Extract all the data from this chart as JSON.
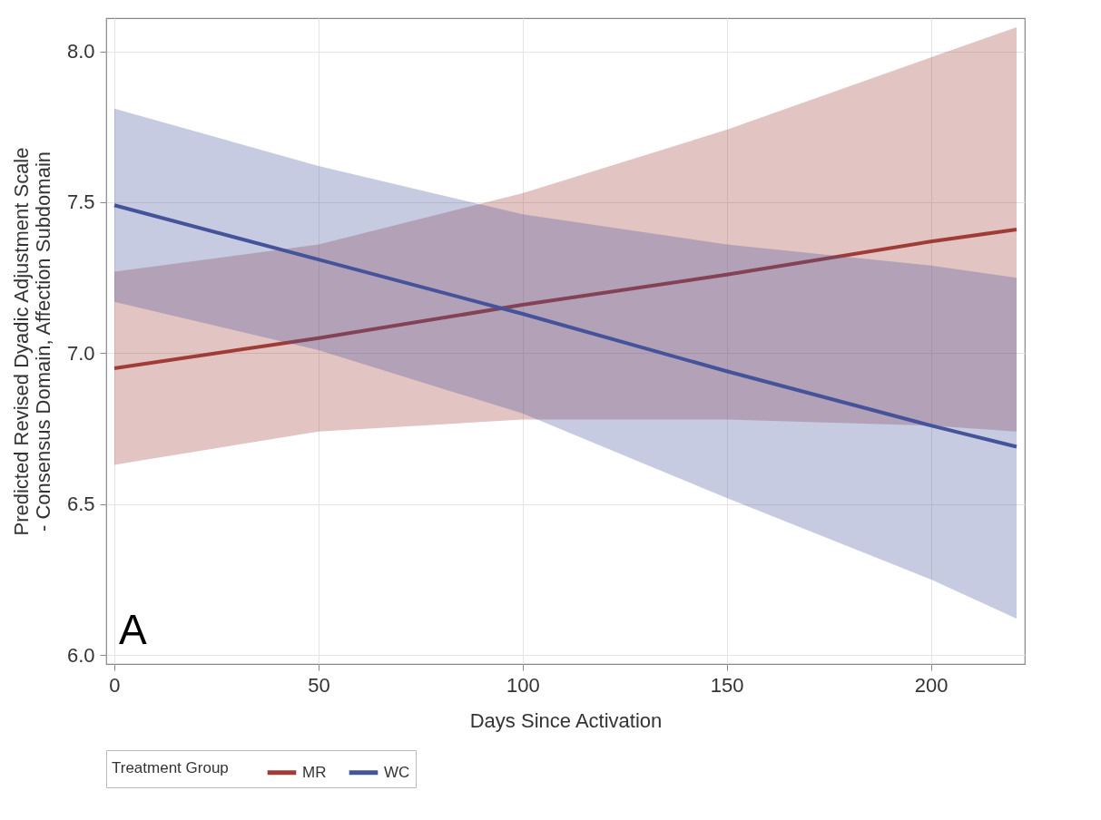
{
  "chart_data": {
    "type": "line",
    "xlabel": "Days Since Activation",
    "ylabel": "Predicted Revised Dyadic Adjustment Scale - Consensus Domain, Affection Subdomain",
    "legend_title": "Treatment Group",
    "legend": "bottom",
    "grid": true,
    "line_style": "solid",
    "marker": "none",
    "xlim": [
      -2,
      223
    ],
    "xticks": [
      0,
      50,
      100,
      150,
      200
    ],
    "ylim": [
      5.97,
      8.11
    ],
    "yticks": [
      {
        "value": 6,
        "label": "6.0"
      },
      6.5,
      {
        "value": 7,
        "label": "7.0"
      },
      7.5,
      {
        "value": 8,
        "label": "8.0"
      }
    ],
    "annotations": [
      "A"
    ],
    "series": [
      {
        "name": "MR",
        "color": "#a03c38",
        "x": [
          0,
          50,
          100,
          150,
          200,
          221
        ],
        "values": [
          6.95,
          7.05,
          7.16,
          7.26,
          7.37,
          7.41
        ],
        "lower": [
          6.63,
          6.74,
          6.78,
          6.78,
          6.76,
          6.74
        ],
        "upper": [
          7.27,
          7.36,
          7.53,
          7.74,
          7.98,
          8.08
        ]
      },
      {
        "name": "WC",
        "color": "#44539a",
        "x": [
          0,
          50,
          100,
          150,
          200,
          221
        ],
        "values": [
          7.49,
          7.31,
          7.13,
          6.94,
          6.76,
          6.69
        ],
        "lower": [
          7.17,
          7.01,
          6.8,
          6.52,
          6.25,
          6.12
        ],
        "upper": [
          7.81,
          7.62,
          7.46,
          7.36,
          7.29,
          7.25
        ]
      }
    ]
  }
}
